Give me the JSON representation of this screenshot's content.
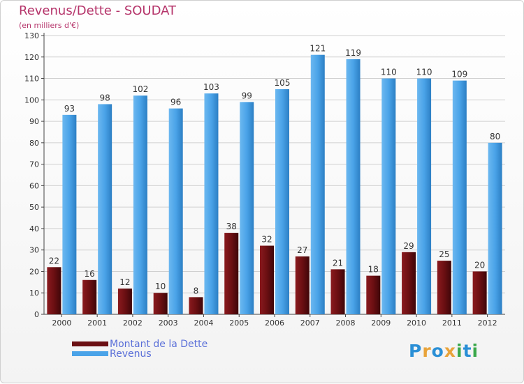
{
  "title": "Revenus/Dette - SOUDAT",
  "subtitle": "(en milliers d'€)",
  "legend": {
    "items": [
      {
        "label": "Montant de la Dette",
        "color": "#6b0f12"
      },
      {
        "label": "Revenus",
        "color": "#4aa3e8"
      }
    ]
  },
  "logo": {
    "text": "Proxiti"
  },
  "colors": {
    "dette": "#6b0f12",
    "revenus": "#4aa3e8",
    "axis": "#444444",
    "grid": "#d0d0d0"
  },
  "chart_data": {
    "type": "bar",
    "categories": [
      "2000",
      "2001",
      "2002",
      "2003",
      "2004",
      "2005",
      "2006",
      "2007",
      "2008",
      "2009",
      "2010",
      "2011",
      "2012"
    ],
    "series": [
      {
        "name": "Montant de la Dette",
        "values": [
          22,
          16,
          12,
          10,
          8,
          38,
          32,
          27,
          21,
          18,
          29,
          25,
          20
        ]
      },
      {
        "name": "Revenus",
        "values": [
          93,
          98,
          102,
          96,
          103,
          99,
          105,
          121,
          119,
          110,
          110,
          109,
          80
        ]
      }
    ],
    "ylim": [
      0,
      130
    ],
    "yticks": [
      0,
      10,
      20,
      30,
      40,
      50,
      60,
      70,
      80,
      90,
      100,
      110,
      120,
      130
    ],
    "grid": true,
    "legend_position": "bottom-left"
  }
}
